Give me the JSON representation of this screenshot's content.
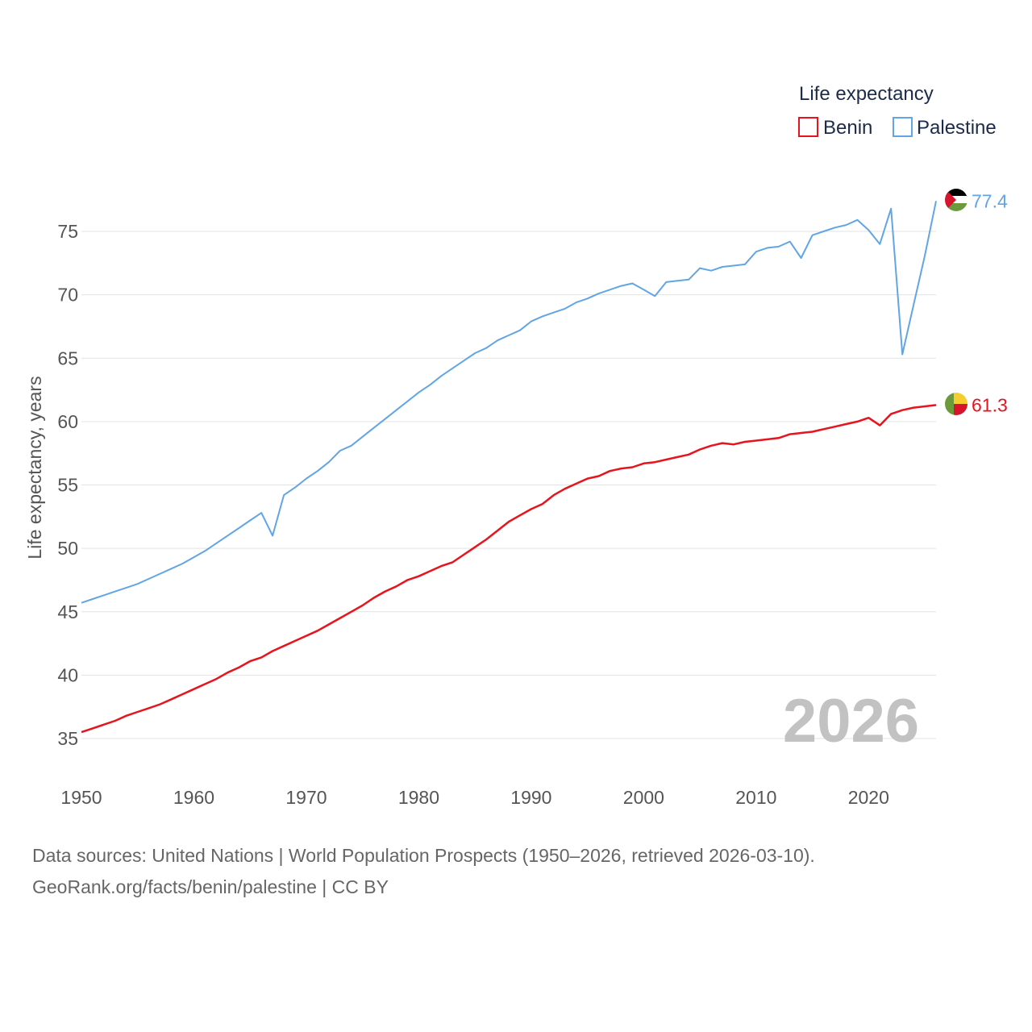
{
  "chart_data": {
    "type": "line",
    "legend_title": "Life expectancy",
    "ylabel": "Life expectancy, years",
    "xlabel": "",
    "xlim": [
      1950,
      2026
    ],
    "ylim": [
      32.5,
      78
    ],
    "x_ticks": [
      1950,
      1960,
      1970,
      1980,
      1990,
      2000,
      2010,
      2020
    ],
    "y_ticks": [
      35,
      40,
      45,
      50,
      55,
      60,
      65,
      70,
      75
    ],
    "grid": true,
    "legend_position": "top-right",
    "year_label": "2026",
    "series": [
      {
        "name": "Benin",
        "color": "#e8141d",
        "end_label": "61.3",
        "flag": "benin-flag",
        "points": [
          [
            1950,
            35.5
          ],
          [
            1951,
            35.8
          ],
          [
            1952,
            36.1
          ],
          [
            1953,
            36.4
          ],
          [
            1954,
            36.8
          ],
          [
            1955,
            37.1
          ],
          [
            1956,
            37.4
          ],
          [
            1957,
            37.7
          ],
          [
            1958,
            38.1
          ],
          [
            1959,
            38.5
          ],
          [
            1960,
            38.9
          ],
          [
            1961,
            39.3
          ],
          [
            1962,
            39.7
          ],
          [
            1963,
            40.2
          ],
          [
            1964,
            40.6
          ],
          [
            1965,
            41.1
          ],
          [
            1966,
            41.4
          ],
          [
            1967,
            41.9
          ],
          [
            1968,
            42.3
          ],
          [
            1969,
            42.7
          ],
          [
            1970,
            43.1
          ],
          [
            1971,
            43.5
          ],
          [
            1972,
            44.0
          ],
          [
            1973,
            44.5
          ],
          [
            1974,
            45.0
          ],
          [
            1975,
            45.5
          ],
          [
            1976,
            46.1
          ],
          [
            1977,
            46.6
          ],
          [
            1978,
            47.0
          ],
          [
            1979,
            47.5
          ],
          [
            1980,
            47.8
          ],
          [
            1981,
            48.2
          ],
          [
            1982,
            48.6
          ],
          [
            1983,
            48.9
          ],
          [
            1984,
            49.5
          ],
          [
            1985,
            50.1
          ],
          [
            1986,
            50.7
          ],
          [
            1987,
            51.4
          ],
          [
            1988,
            52.1
          ],
          [
            1989,
            52.6
          ],
          [
            1990,
            53.1
          ],
          [
            1991,
            53.5
          ],
          [
            1992,
            54.2
          ],
          [
            1993,
            54.7
          ],
          [
            1994,
            55.1
          ],
          [
            1995,
            55.5
          ],
          [
            1996,
            55.7
          ],
          [
            1997,
            56.1
          ],
          [
            1998,
            56.3
          ],
          [
            1999,
            56.4
          ],
          [
            2000,
            56.7
          ],
          [
            2001,
            56.8
          ],
          [
            2002,
            57.0
          ],
          [
            2003,
            57.2
          ],
          [
            2004,
            57.4
          ],
          [
            2005,
            57.8
          ],
          [
            2006,
            58.1
          ],
          [
            2007,
            58.3
          ],
          [
            2008,
            58.2
          ],
          [
            2009,
            58.4
          ],
          [
            2010,
            58.5
          ],
          [
            2011,
            58.6
          ],
          [
            2012,
            58.7
          ],
          [
            2013,
            59.0
          ],
          [
            2014,
            59.1
          ],
          [
            2015,
            59.2
          ],
          [
            2016,
            59.4
          ],
          [
            2017,
            59.6
          ],
          [
            2018,
            59.8
          ],
          [
            2019,
            60.0
          ],
          [
            2020,
            60.3
          ],
          [
            2021,
            59.7
          ],
          [
            2022,
            60.6
          ],
          [
            2023,
            60.9
          ],
          [
            2024,
            61.1
          ],
          [
            2025,
            61.2
          ],
          [
            2026,
            61.3
          ]
        ]
      },
      {
        "name": "Palestine",
        "color": "#62a5e4",
        "end_label": "77.4",
        "flag": "palestine-flag",
        "points": [
          [
            1950,
            45.7
          ],
          [
            1951,
            46.0
          ],
          [
            1952,
            46.3
          ],
          [
            1953,
            46.6
          ],
          [
            1954,
            46.9
          ],
          [
            1955,
            47.2
          ],
          [
            1956,
            47.6
          ],
          [
            1957,
            48.0
          ],
          [
            1958,
            48.4
          ],
          [
            1959,
            48.8
          ],
          [
            1960,
            49.3
          ],
          [
            1961,
            49.8
          ],
          [
            1962,
            50.4
          ],
          [
            1963,
            51.0
          ],
          [
            1964,
            51.6
          ],
          [
            1965,
            52.2
          ],
          [
            1966,
            52.8
          ],
          [
            1967,
            51.0
          ],
          [
            1968,
            54.2
          ],
          [
            1969,
            54.8
          ],
          [
            1970,
            55.5
          ],
          [
            1971,
            56.1
          ],
          [
            1972,
            56.8
          ],
          [
            1973,
            57.7
          ],
          [
            1974,
            58.1
          ],
          [
            1975,
            58.8
          ],
          [
            1976,
            59.5
          ],
          [
            1977,
            60.2
          ],
          [
            1978,
            60.9
          ],
          [
            1979,
            61.6
          ],
          [
            1980,
            62.3
          ],
          [
            1981,
            62.9
          ],
          [
            1982,
            63.6
          ],
          [
            1983,
            64.2
          ],
          [
            1984,
            64.8
          ],
          [
            1985,
            65.4
          ],
          [
            1986,
            65.8
          ],
          [
            1987,
            66.4
          ],
          [
            1988,
            66.8
          ],
          [
            1989,
            67.2
          ],
          [
            1990,
            67.9
          ],
          [
            1991,
            68.3
          ],
          [
            1992,
            68.6
          ],
          [
            1993,
            68.9
          ],
          [
            1994,
            69.4
          ],
          [
            1995,
            69.7
          ],
          [
            1996,
            70.1
          ],
          [
            1997,
            70.4
          ],
          [
            1998,
            70.7
          ],
          [
            1999,
            70.9
          ],
          [
            2000,
            70.4
          ],
          [
            2001,
            69.9
          ],
          [
            2002,
            71.0
          ],
          [
            2003,
            71.1
          ],
          [
            2004,
            71.2
          ],
          [
            2005,
            72.1
          ],
          [
            2006,
            71.9
          ],
          [
            2007,
            72.2
          ],
          [
            2008,
            72.3
          ],
          [
            2009,
            72.4
          ],
          [
            2010,
            73.4
          ],
          [
            2011,
            73.7
          ],
          [
            2012,
            73.8
          ],
          [
            2013,
            74.2
          ],
          [
            2014,
            72.9
          ],
          [
            2015,
            74.7
          ],
          [
            2016,
            75.0
          ],
          [
            2017,
            75.3
          ],
          [
            2018,
            75.5
          ],
          [
            2019,
            75.9
          ],
          [
            2020,
            75.1
          ],
          [
            2021,
            74.0
          ],
          [
            2022,
            76.8
          ],
          [
            2023,
            65.3
          ],
          [
            2024,
            69.2
          ],
          [
            2025,
            73.1
          ],
          [
            2026,
            77.4
          ]
        ]
      }
    ]
  },
  "footer": {
    "source_line": "Data sources: United Nations | World Population Prospects (1950–2026, retrieved 2026-03-10).",
    "credit_line": "GeoRank.org/facts/benin/palestine | CC BY"
  }
}
